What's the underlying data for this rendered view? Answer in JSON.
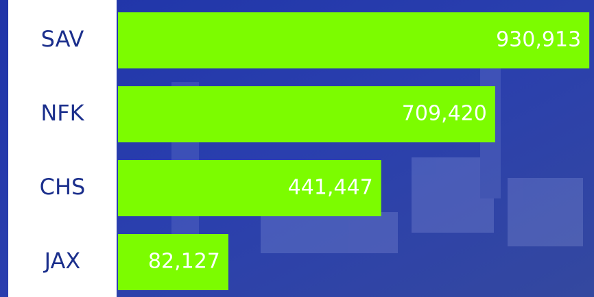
{
  "chart_data": {
    "type": "bar",
    "categories": [
      "SAV",
      "NFK",
      "CHS",
      "JAX"
    ],
    "values": [
      930913,
      709420,
      441447,
      82127
    ],
    "value_labels": [
      "930,913",
      "709,420",
      "441,447",
      "82,127"
    ],
    "color": "#7cfc00"
  }
}
